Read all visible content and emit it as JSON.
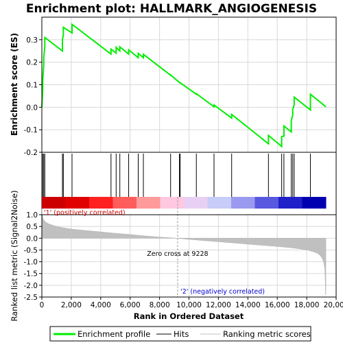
{
  "chart_data": [
    {
      "type": "line",
      "title": "Enrichment plot: HALLMARK_ANGIOGENESIS",
      "ylabel": "Enrichment score (ES)",
      "xlim": [
        0,
        20000
      ],
      "ylim": [
        -0.2,
        0.4
      ],
      "yticks": [
        -0.2,
        -0.1,
        0.0,
        0.1,
        0.2,
        0.3
      ],
      "ytick_labels": [
        "-0.2",
        "-0.1",
        "0.0",
        "0.1",
        "0.2",
        "0.3"
      ],
      "grid": true,
      "series": [
        {
          "name": "Enrichment profile",
          "color": "#00ee00",
          "x": [
            0,
            60,
            60,
            130,
            130,
            200,
            200,
            1400,
            1400,
            1460,
            1460,
            2050,
            2050,
            4700,
            4700,
            5050,
            5050,
            5300,
            5300,
            5900,
            5900,
            6550,
            6550,
            6900,
            6900,
            8750,
            8750,
            9350,
            9350,
            10500,
            10500,
            11700,
            11700,
            12900,
            12900,
            15400,
            15400,
            16300,
            16300,
            16450,
            16450,
            16950,
            16950,
            17050,
            17050,
            17150,
            17150,
            18250,
            18250,
            19300
          ],
          "y": [
            0.0,
            0.08,
            0.12,
            0.19,
            0.22,
            0.27,
            0.31,
            0.25,
            0.3,
            0.32,
            0.355,
            0.33,
            0.368,
            0.236,
            0.258,
            0.24,
            0.266,
            0.25,
            0.268,
            0.236,
            0.255,
            0.22,
            0.239,
            0.22,
            0.235,
            0.142,
            0.143,
            0.11,
            0.111,
            0.058,
            0.06,
            0.002,
            0.01,
            -0.048,
            -0.032,
            -0.162,
            -0.125,
            -0.174,
            -0.13,
            -0.128,
            -0.083,
            -0.11,
            -0.06,
            -0.035,
            -0.01,
            0.012,
            0.045,
            -0.012,
            0.058,
            0.002
          ]
        }
      ]
    },
    {
      "type": "scatter",
      "title": "",
      "series": [
        {
          "name": "Hits",
          "color": "#000000",
          "x": [
            60,
            130,
            200,
            1400,
            1460,
            2050,
            4700,
            5050,
            5300,
            5900,
            6550,
            6900,
            8750,
            9350,
            9400,
            10500,
            11700,
            12900,
            15400,
            16300,
            16450,
            16950,
            17050,
            17150,
            18250
          ]
        }
      ]
    },
    {
      "type": "area",
      "title": "",
      "xlabel": "Rank in Ordered Dataset",
      "ylabel": "Ranked list metric (Signal2Noise)",
      "xlim": [
        0,
        20000
      ],
      "ylim": [
        -2.5,
        1.0
      ],
      "xticks": [
        0,
        2000,
        4000,
        6000,
        8000,
        10000,
        12000,
        14000,
        16000,
        18000,
        20000
      ],
      "xtick_labels": [
        "0",
        "2,000",
        "4,000",
        "6,000",
        "8,000",
        "10,000",
        "12,000",
        "14,000",
        "16,000",
        "18,000",
        "20,000"
      ],
      "yticks": [
        1.0,
        0.5,
        0.0,
        -0.5,
        -1.0,
        -1.5,
        -2.0,
        -2.5
      ],
      "ytick_labels": [
        "1.0",
        "0.5",
        "0.0",
        "-0.5",
        "-1.0",
        "-1.5",
        "-2.0",
        "-2.5"
      ],
      "grid": true,
      "series": [
        {
          "name": "Ranking metric scores",
          "color": "#c0c0c0",
          "x": [
            0,
            40,
            100,
            200,
            400,
            700,
            1000,
            1500,
            2000,
            3000,
            4000,
            5000,
            6000,
            7000,
            8000,
            9228,
            10000,
            11000,
            12000,
            13000,
            14000,
            15000,
            16000,
            17000,
            17500,
            18000,
            18400,
            18700,
            18900,
            19050,
            19150,
            19230,
            19260,
            19280,
            19300
          ],
          "y": [
            1.25,
            0.95,
            0.82,
            0.72,
            0.63,
            0.56,
            0.5,
            0.44,
            0.39,
            0.33,
            0.27,
            0.21,
            0.16,
            0.1,
            0.05,
            0.0,
            -0.05,
            -0.1,
            -0.15,
            -0.2,
            -0.25,
            -0.3,
            -0.35,
            -0.41,
            -0.45,
            -0.5,
            -0.56,
            -0.63,
            -0.72,
            -0.85,
            -1.0,
            -1.3,
            -1.8,
            -2.4,
            -2.4
          ]
        }
      ],
      "annotations": [
        {
          "text": "'1' (positively correlated)",
          "x": 0,
          "color": "#cc0000"
        },
        {
          "text": "Zero cross at 9228",
          "x": 9228,
          "color": "#000000"
        },
        {
          "text": "'2' (negatively correlated)",
          "x": 20000,
          "color": "#0000cc"
        }
      ]
    }
  ],
  "legend": {
    "placement": "bottom",
    "items": [
      {
        "label": "Enrichment profile",
        "color": "#00ee00",
        "kind": "thick-line"
      },
      {
        "label": "Hits",
        "color": "#000000",
        "kind": "thin-line"
      },
      {
        "label": "Ranking metric scores",
        "color": "#c0c0c0",
        "kind": "thin-line"
      }
    ]
  },
  "colorbar": {
    "palette": [
      "#cc0000",
      "#e00000",
      "#ff2020",
      "#ff5c5c",
      "#ff9a9a",
      "#ffc8e0",
      "#e8d0f4",
      "#c8ccf8",
      "#9a9af0",
      "#5858e0",
      "#2020c8",
      "#0000b0"
    ]
  }
}
